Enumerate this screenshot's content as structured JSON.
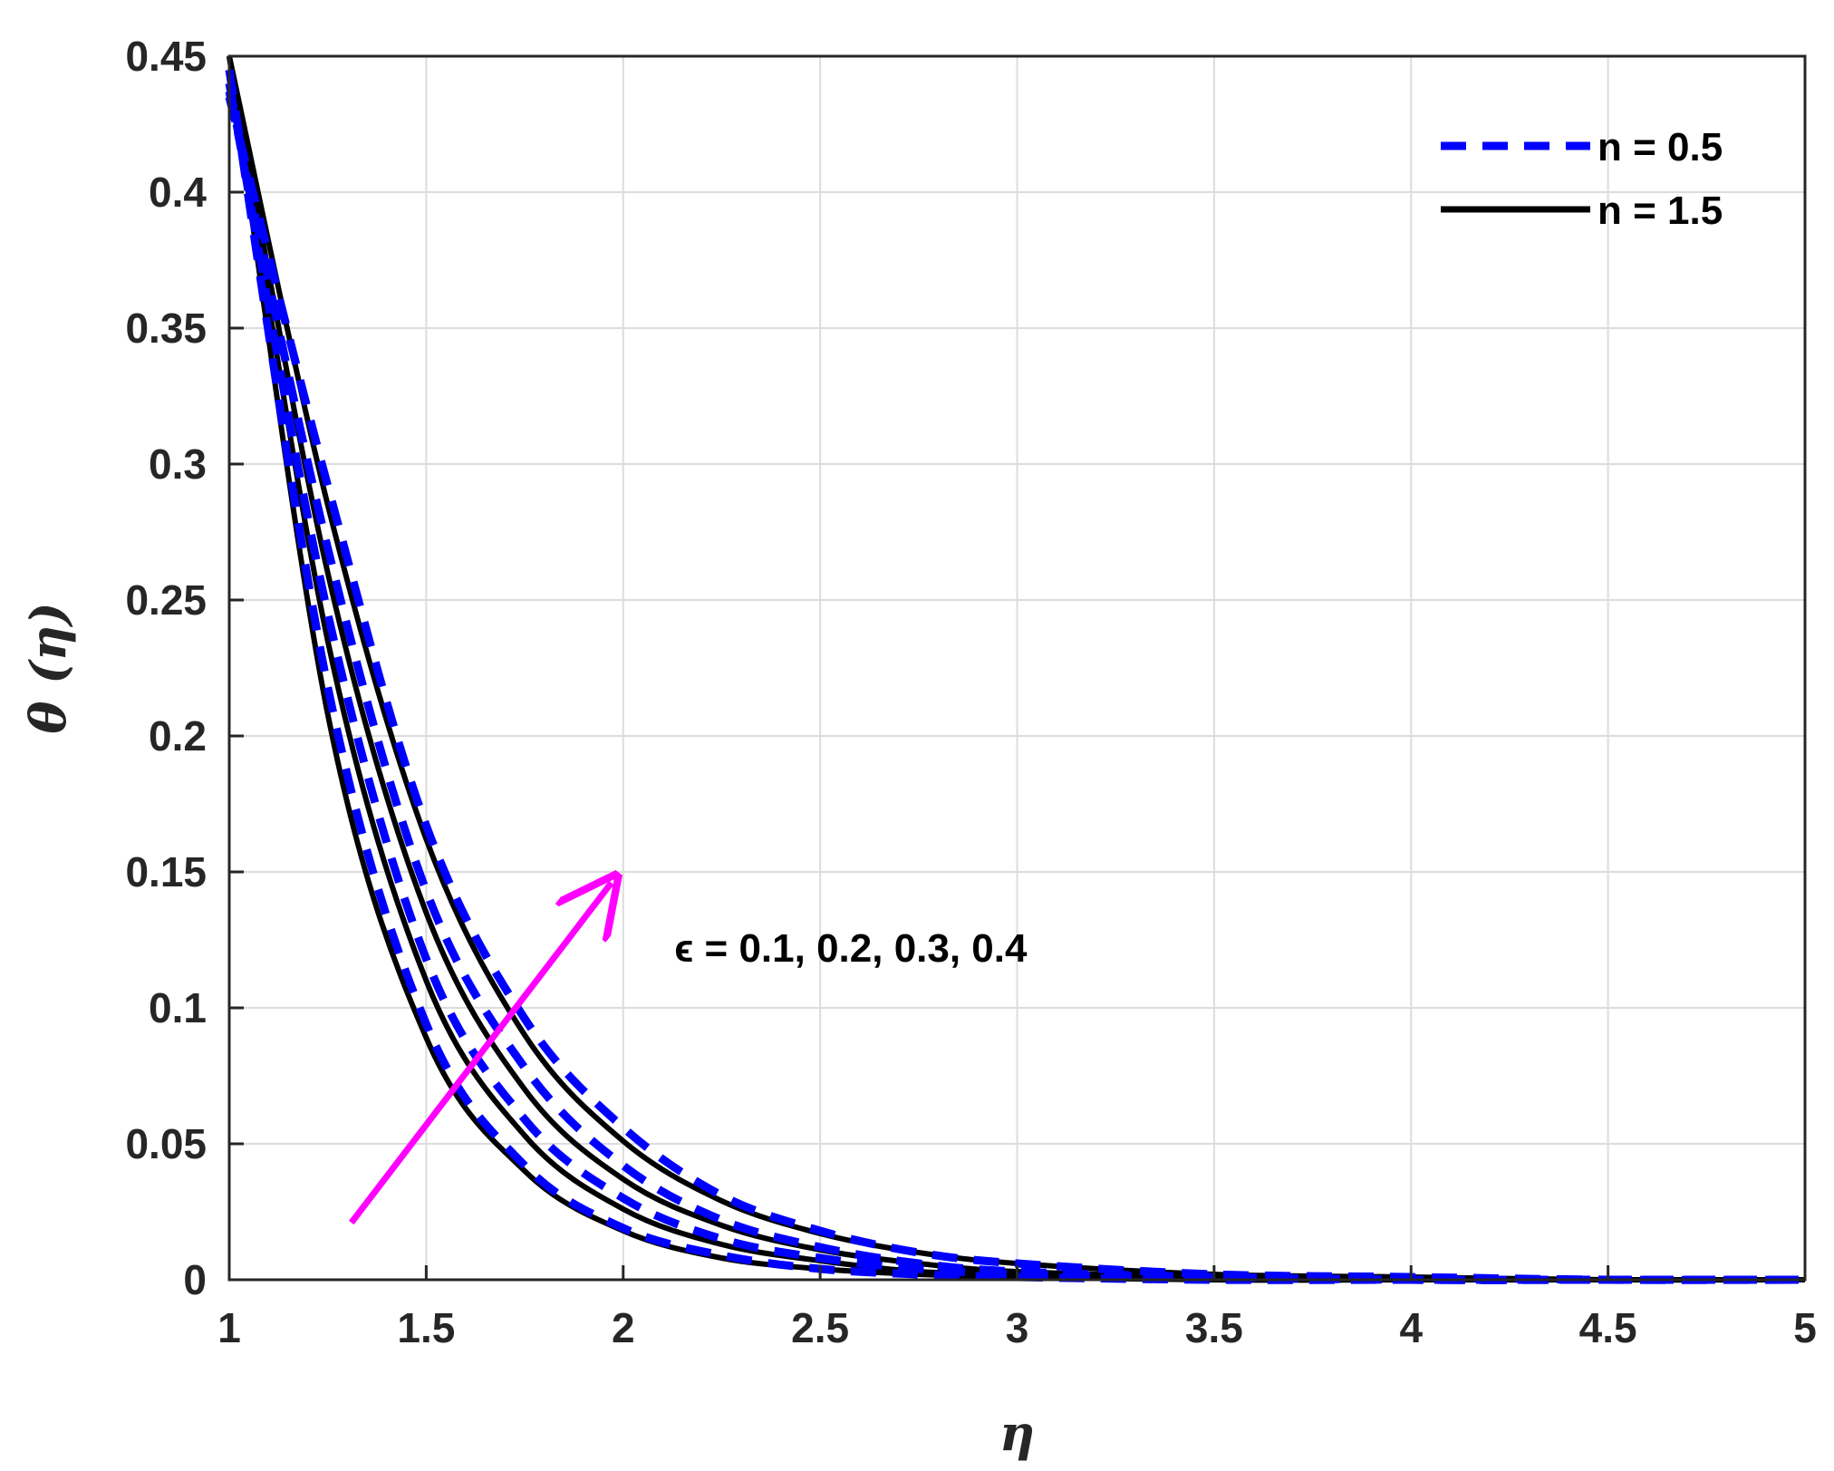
{
  "chart_data": {
    "type": "line",
    "title": "",
    "xlabel": "η",
    "ylabel": "θ (η)",
    "xlim": [
      1,
      5
    ],
    "ylim": [
      0,
      0.45
    ],
    "grid": true,
    "legend_position": "top-right",
    "x_ticks": [
      "1",
      "1.5",
      "2",
      "2.5",
      "3",
      "3.5",
      "4",
      "4.5",
      "5"
    ],
    "y_ticks": [
      "0",
      "0.05",
      "0.1",
      "0.15",
      "0.2",
      "0.25",
      "0.3",
      "0.35",
      "0.4",
      "0.45"
    ],
    "x_tick_values": [
      1,
      1.5,
      2,
      2.5,
      3,
      3.5,
      4,
      4.5,
      5
    ],
    "y_tick_values": [
      0,
      0.05,
      0.1,
      0.15,
      0.2,
      0.25,
      0.3,
      0.35,
      0.4,
      0.45
    ],
    "legend": [
      {
        "label": "n = 0.5",
        "color": "#0000ff",
        "style": "dashed"
      },
      {
        "label": "n = 1.5",
        "color": "#000000",
        "style": "solid"
      }
    ],
    "annotation": {
      "text": "ϵ = 0.1, 0.2, 0.3, 0.4",
      "arrow_color": "#ff00ff",
      "arrow_from": [
        1.31,
        0.021
      ],
      "arrow_to": [
        1.97,
        0.146
      ],
      "text_anchor": [
        2.13,
        0.117
      ]
    },
    "x": [
      1.0,
      1.25,
      1.5,
      1.75,
      2.0,
      2.25,
      2.5,
      2.75,
      3.0,
      3.5,
      4.0,
      4.5,
      5.0
    ],
    "series": [
      {
        "legend": "n = 0.5",
        "epsilon": "0.1",
        "style": "dashed",
        "color": "#0000ff",
        "values": [
          0.445,
          0.218,
          0.094,
          0.042,
          0.019,
          0.009,
          0.004,
          0.002,
          0.001,
          0.0,
          0.0,
          0.0,
          0.0
        ]
      },
      {
        "legend": "n = 0.5",
        "epsilon": "0.2",
        "style": "dashed",
        "color": "#0000ff",
        "values": [
          0.44,
          0.245,
          0.118,
          0.059,
          0.03,
          0.015,
          0.008,
          0.004,
          0.002,
          0.001,
          0.0,
          0.0,
          0.0
        ]
      },
      {
        "legend": "n = 0.5",
        "epsilon": "0.3",
        "style": "dashed",
        "color": "#0000ff",
        "values": [
          0.437,
          0.269,
          0.143,
          0.078,
          0.042,
          0.022,
          0.012,
          0.006,
          0.003,
          0.001,
          0.0,
          0.0,
          0.0
        ]
      },
      {
        "legend": "n = 0.5",
        "epsilon": "0.4",
        "style": "dashed",
        "color": "#0000ff",
        "values": [
          0.435,
          0.292,
          0.167,
          0.096,
          0.056,
          0.031,
          0.018,
          0.01,
          0.006,
          0.002,
          0.001,
          0.0,
          0.0
        ]
      },
      {
        "legend": "n = 1.5",
        "epsilon": "0.1",
        "style": "solid",
        "color": "#000000",
        "values": [
          0.45,
          0.208,
          0.089,
          0.04,
          0.018,
          0.008,
          0.004,
          0.002,
          0.001,
          0.0,
          0.0,
          0.0,
          0.0
        ]
      },
      {
        "legend": "n = 1.5",
        "epsilon": "0.2",
        "style": "solid",
        "color": "#000000",
        "values": [
          0.45,
          0.235,
          0.11,
          0.053,
          0.026,
          0.013,
          0.007,
          0.003,
          0.002,
          0.0,
          0.0,
          0.0,
          0.0
        ]
      },
      {
        "legend": "n = 1.5",
        "epsilon": "0.3",
        "style": "solid",
        "color": "#000000",
        "values": [
          0.45,
          0.26,
          0.135,
          0.07,
          0.037,
          0.02,
          0.011,
          0.006,
          0.003,
          0.001,
          0.0,
          0.0,
          0.0
        ]
      },
      {
        "legend": "n = 1.5",
        "epsilon": "0.4",
        "style": "solid",
        "color": "#000000",
        "values": [
          0.45,
          0.285,
          0.162,
          0.09,
          0.051,
          0.029,
          0.017,
          0.01,
          0.006,
          0.002,
          0.001,
          0.0,
          0.0
        ]
      }
    ]
  }
}
